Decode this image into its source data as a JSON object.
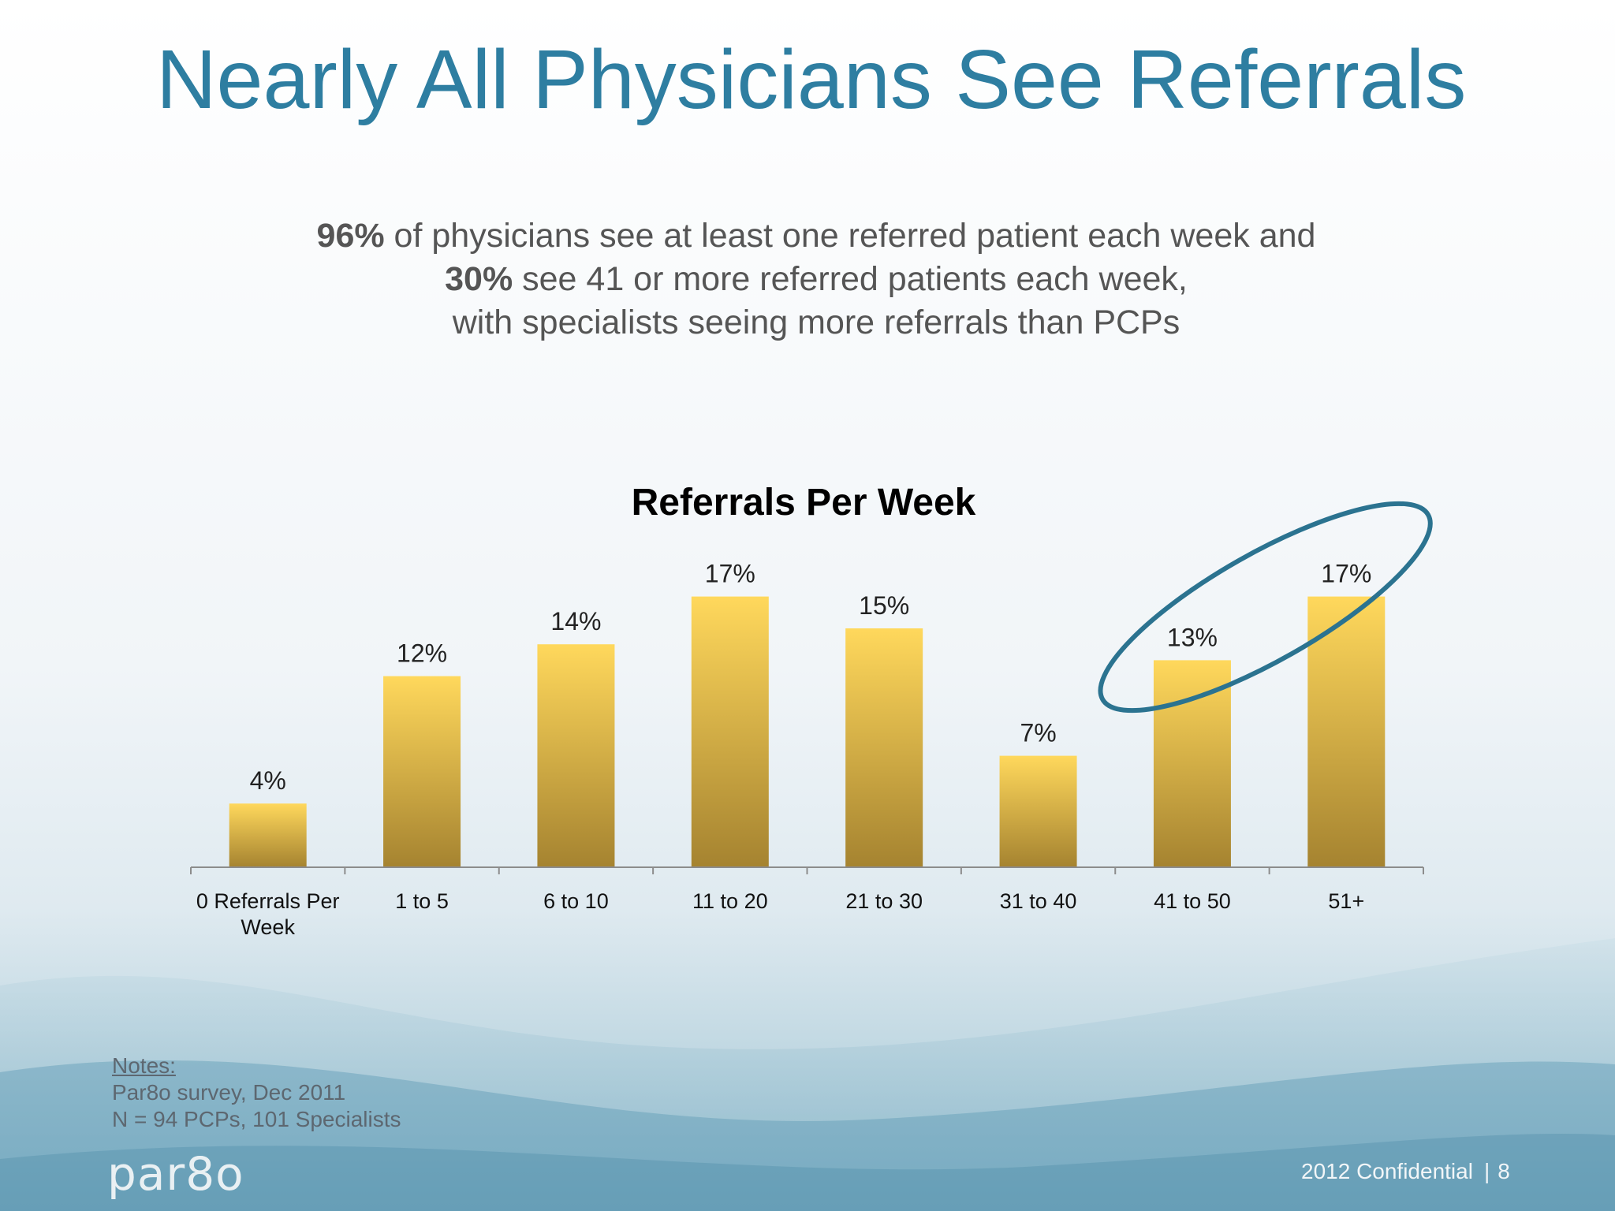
{
  "slide": {
    "title": "Nearly All Physicians See Referrals",
    "subtitle": {
      "line1_bold": "96%",
      "line1_rest": " of physicians see at least one referred patient each week and",
      "line2_bold": "30%",
      "line2_rest": " see 41 or more referred patients each week,",
      "line3": "with specialists seeing more referrals than PCPs"
    },
    "notes": {
      "heading": "Notes:",
      "line1": "Par8o survey, Dec 2011",
      "line2": "N = 94 PCPs, 101 Specialists"
    },
    "logo": "par8o",
    "footer": {
      "confidential": "2012 Confidential",
      "separator": "|",
      "page": "8"
    }
  },
  "chart_data": {
    "type": "bar",
    "title": "Referrals Per Week",
    "xlabel": "",
    "ylabel": "",
    "categories": [
      "0 Referrals Per Week",
      "1 to 5",
      "6 to 10",
      "11 to 20",
      "21 to 30",
      "31 to 40",
      "41 to 50",
      "51+"
    ],
    "values": [
      4,
      12,
      14,
      17,
      15,
      7,
      13,
      17
    ],
    "value_labels": [
      "4%",
      "12%",
      "14%",
      "17%",
      "15%",
      "7%",
      "13%",
      "17%"
    ],
    "unit": "%",
    "ylim": [
      0,
      17
    ],
    "grid": false,
    "legend": "none",
    "highlight": [
      "41 to 50",
      "51+"
    ],
    "colors": {
      "bar_top": "#ffd85c",
      "bar_bottom": "#a58330",
      "highlight_ring": "#2b7390",
      "axis": "#8c8c8c"
    }
  }
}
